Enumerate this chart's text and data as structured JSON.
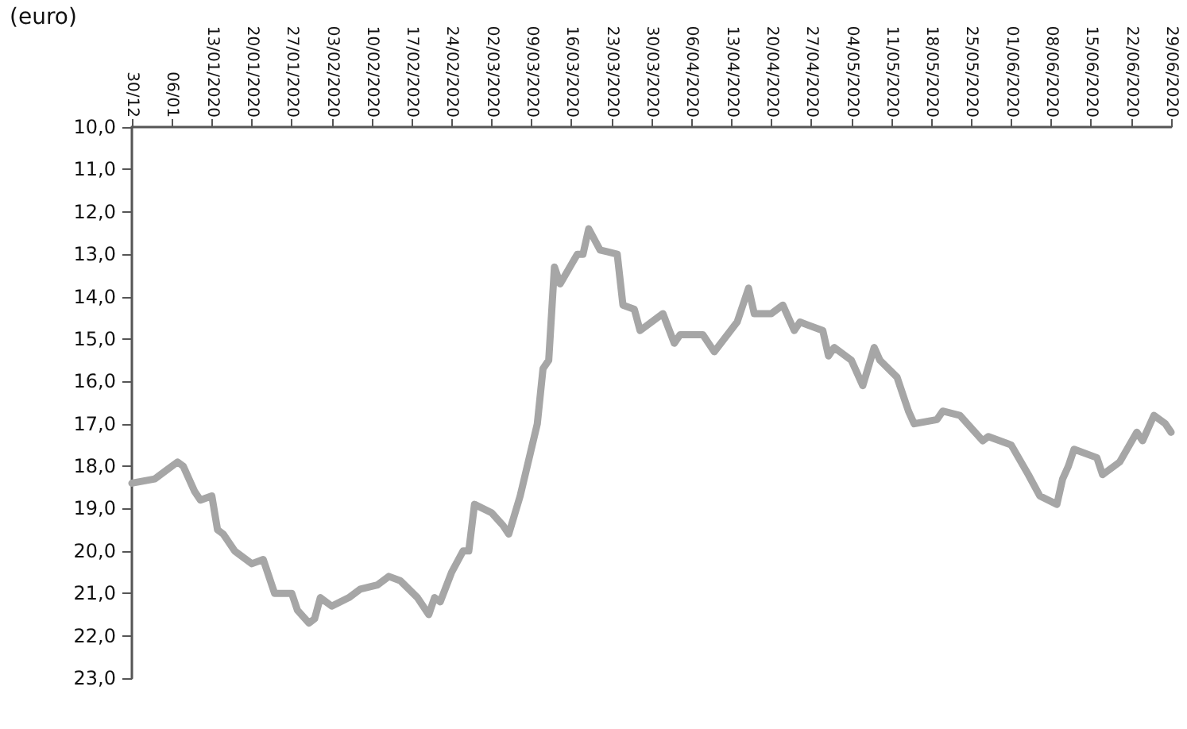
{
  "chart_data": {
    "type": "line",
    "ylabel": "(euro)",
    "x": [
      "2019-12-30",
      "2020-01-03",
      "2020-01-05",
      "2020-01-07",
      "2020-01-08",
      "2020-01-10",
      "2020-01-11",
      "2020-01-13",
      "2020-01-14",
      "2020-01-15",
      "2020-01-17",
      "2020-01-20",
      "2020-01-22",
      "2020-01-24",
      "2020-01-27",
      "2020-01-28",
      "2020-01-30",
      "2020-01-31",
      "2020-02-01",
      "2020-02-03",
      "2020-02-06",
      "2020-02-08",
      "2020-02-11",
      "2020-02-13",
      "2020-02-15",
      "2020-02-18",
      "2020-02-20",
      "2020-02-21",
      "2020-02-22",
      "2020-02-24",
      "2020-02-26",
      "2020-02-27",
      "2020-02-28",
      "2020-03-02",
      "2020-03-04",
      "2020-03-05",
      "2020-03-07",
      "2020-03-10",
      "2020-03-11",
      "2020-03-12",
      "2020-03-13",
      "2020-03-14",
      "2020-03-17",
      "2020-03-18",
      "2020-03-19",
      "2020-03-21",
      "2020-03-24",
      "2020-03-25",
      "2020-03-27",
      "2020-03-28",
      "2020-04-01",
      "2020-04-03",
      "2020-04-04",
      "2020-04-08",
      "2020-04-10",
      "2020-04-14",
      "2020-04-16",
      "2020-04-17",
      "2020-04-20",
      "2020-04-22",
      "2020-04-24",
      "2020-04-25",
      "2020-04-29",
      "2020-04-30",
      "2020-05-01",
      "2020-05-04",
      "2020-05-06",
      "2020-05-08",
      "2020-05-09",
      "2020-05-12",
      "2020-05-14",
      "2020-05-15",
      "2020-05-19",
      "2020-05-20",
      "2020-05-23",
      "2020-05-27",
      "2020-05-28",
      "2020-06-01",
      "2020-06-04",
      "2020-06-06",
      "2020-06-09",
      "2020-06-10",
      "2020-06-11",
      "2020-06-12",
      "2020-06-16",
      "2020-06-17",
      "2020-06-20",
      "2020-06-23",
      "2020-06-24",
      "2020-06-26",
      "2020-06-28",
      "2020-06-29"
    ],
    "series": [
      {
        "color": "#a6a6a6",
        "values": [
          18.4,
          18.3,
          18.1,
          17.9,
          18.0,
          18.6,
          18.8,
          18.7,
          19.5,
          19.6,
          20.0,
          20.3,
          20.2,
          21.0,
          21.0,
          21.4,
          21.7,
          21.6,
          21.1,
          21.3,
          21.1,
          20.9,
          20.8,
          20.6,
          20.7,
          21.1,
          21.5,
          21.1,
          21.2,
          20.5,
          20.0,
          20.0,
          18.9,
          19.1,
          19.4,
          19.6,
          18.7,
          17.0,
          15.7,
          15.5,
          13.3,
          13.7,
          13.0,
          13.0,
          12.4,
          12.9,
          13.0,
          14.2,
          14.3,
          14.8,
          14.4,
          15.1,
          14.9,
          14.9,
          15.3,
          14.6,
          13.8,
          14.4,
          14.4,
          14.2,
          14.8,
          14.6,
          14.8,
          15.4,
          15.2,
          15.5,
          16.1,
          15.2,
          15.5,
          15.9,
          16.7,
          17.0,
          16.9,
          16.7,
          16.8,
          17.4,
          17.3,
          17.5,
          18.2,
          18.7,
          18.9,
          18.3,
          18.0,
          17.6,
          17.8,
          18.2,
          17.9,
          17.2,
          17.4,
          16.8,
          17.0,
          17.2
        ]
      }
    ],
    "xlim": [
      "2019-12-30",
      "2020-06-29"
    ],
    "xticks": [
      {
        "value": "2019-12-30",
        "label": "30/12"
      },
      {
        "value": "2020-01-06",
        "label": "06/01"
      },
      {
        "value": "2020-01-13",
        "label": "13/01/2020"
      },
      {
        "value": "2020-01-20",
        "label": "20/01/2020"
      },
      {
        "value": "2020-01-27",
        "label": "27/01/2020"
      },
      {
        "value": "2020-02-03",
        "label": "03/02/2020"
      },
      {
        "value": "2020-02-10",
        "label": "10/02/2020"
      },
      {
        "value": "2020-02-17",
        "label": "17/02/2020"
      },
      {
        "value": "2020-02-24",
        "label": "24/02/2020"
      },
      {
        "value": "2020-03-02",
        "label": "02/03/2020"
      },
      {
        "value": "2020-03-09",
        "label": "09/03/2020"
      },
      {
        "value": "2020-03-16",
        "label": "16/03/2020"
      },
      {
        "value": "2020-03-23",
        "label": "23/03/2020"
      },
      {
        "value": "2020-03-30",
        "label": "30/03/2020"
      },
      {
        "value": "2020-04-06",
        "label": "06/04/2020"
      },
      {
        "value": "2020-04-13",
        "label": "13/04/2020"
      },
      {
        "value": "2020-04-20",
        "label": "20/04/2020"
      },
      {
        "value": "2020-04-27",
        "label": "27/04/2020"
      },
      {
        "value": "2020-05-04",
        "label": "04/05/2020"
      },
      {
        "value": "2020-05-11",
        "label": "11/05/2020"
      },
      {
        "value": "2020-05-18",
        "label": "18/05/2020"
      },
      {
        "value": "2020-05-25",
        "label": "25/05/2020"
      },
      {
        "value": "2020-06-01",
        "label": "01/06/2020"
      },
      {
        "value": "2020-06-08",
        "label": "08/06/2020"
      },
      {
        "value": "2020-06-15",
        "label": "15/06/2020"
      },
      {
        "value": "2020-06-22",
        "label": "22/06/2020"
      },
      {
        "value": "2020-06-29",
        "label": "29/06/2020"
      }
    ],
    "ylim": [
      23,
      10
    ],
    "yticks": [
      {
        "value": 10,
        "label": "10,0"
      },
      {
        "value": 11,
        "label": "11,0"
      },
      {
        "value": 12,
        "label": "12,0"
      },
      {
        "value": 13,
        "label": "13,0"
      },
      {
        "value": 14,
        "label": "14,0"
      },
      {
        "value": 15,
        "label": "15,0"
      },
      {
        "value": 16,
        "label": "16,0"
      },
      {
        "value": 17,
        "label": "17,0"
      },
      {
        "value": 18,
        "label": "18,0"
      },
      {
        "value": 19,
        "label": "19,0"
      },
      {
        "value": 20,
        "label": "20,0"
      },
      {
        "value": 21,
        "label": "21,0"
      },
      {
        "value": 22,
        "label": "22,0"
      },
      {
        "value": 23,
        "label": "23,0"
      }
    ],
    "grid": false,
    "marker": "none",
    "line_style": "solid"
  }
}
